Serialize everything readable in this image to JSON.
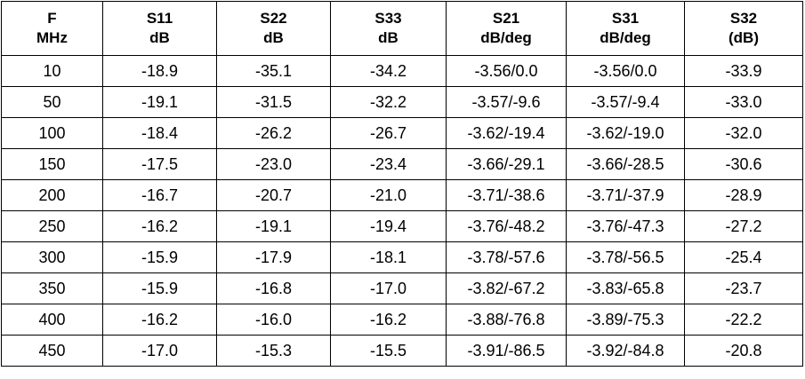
{
  "table": {
    "headers": [
      {
        "line1": "F",
        "line2": "MHz"
      },
      {
        "line1": "S11",
        "line2": "dB"
      },
      {
        "line1": "S22",
        "line2": "dB"
      },
      {
        "line1": "S33",
        "line2": "dB"
      },
      {
        "line1": "S21",
        "line2": "dB/deg"
      },
      {
        "line1": "S31",
        "line2": "dB/deg"
      },
      {
        "line1": "S32",
        "line2": "(dB)"
      }
    ],
    "rows": [
      [
        "10",
        "-18.9",
        "-35.1",
        "-34.2",
        "-3.56/0.0",
        "-3.56/0.0",
        "-33.9"
      ],
      [
        "50",
        "-19.1",
        "-31.5",
        "-32.2",
        "-3.57/-9.6",
        "-3.57/-9.4",
        "-33.0"
      ],
      [
        "100",
        "-18.4",
        "-26.2",
        "-26.7",
        "-3.62/-19.4",
        "-3.62/-19.0",
        "-32.0"
      ],
      [
        "150",
        "-17.5",
        "-23.0",
        "-23.4",
        "-3.66/-29.1",
        "-3.66/-28.5",
        "-30.6"
      ],
      [
        "200",
        "-16.7",
        "-20.7",
        "-21.0",
        "-3.71/-38.6",
        "-3.71/-37.9",
        "-28.9"
      ],
      [
        "250",
        "-16.2",
        "-19.1",
        "-19.4",
        "-3.76/-48.2",
        "-3.76/-47.3",
        "-27.2"
      ],
      [
        "300",
        "-15.9",
        "-17.9",
        "-18.1",
        "-3.78/-57.6",
        "-3.78/-56.5",
        "-25.4"
      ],
      [
        "350",
        "-15.9",
        "-16.8",
        "-17.0",
        "-3.82/-67.2",
        "-3.83/-65.8",
        "-23.7"
      ],
      [
        "400",
        "-16.2",
        "-16.0",
        "-16.2",
        "-3.88/-76.8",
        "-3.89/-75.3",
        "-22.2"
      ],
      [
        "450",
        "-17.0",
        "-15.3",
        "-15.5",
        "-3.91/-86.5",
        "-3.92/-84.8",
        "-20.8"
      ]
    ]
  }
}
